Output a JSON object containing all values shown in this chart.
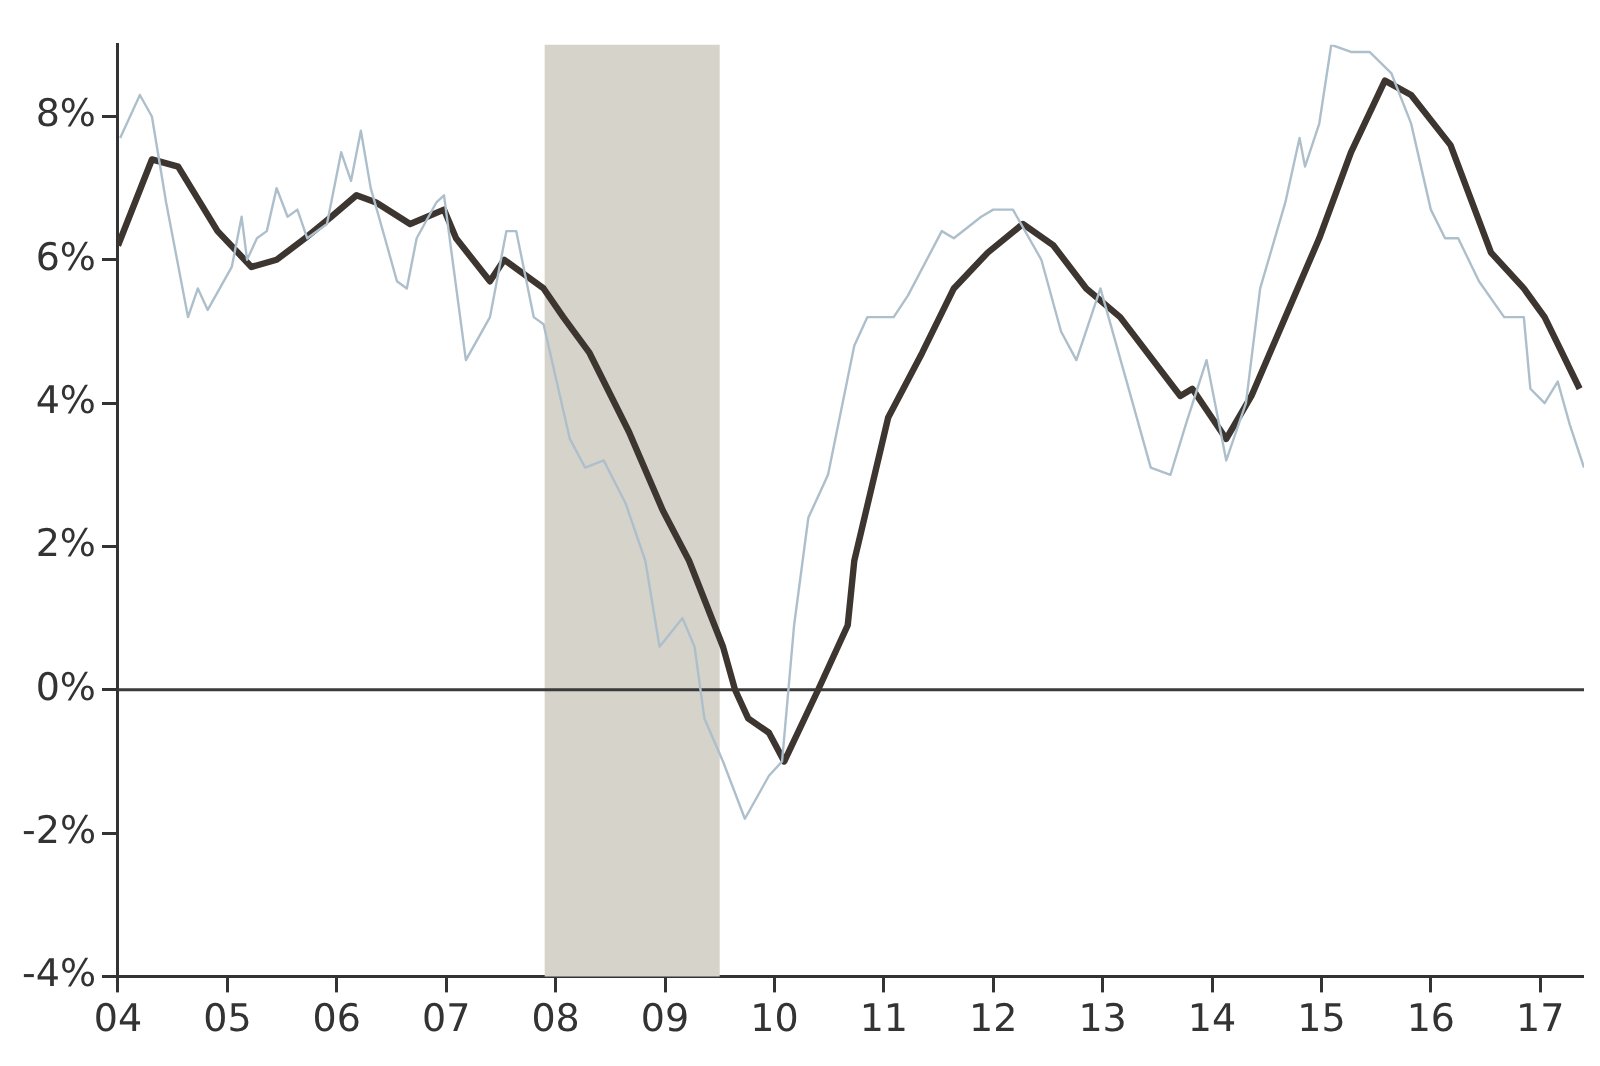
{
  "chart_data": {
    "type": "line",
    "xlim": [
      2004,
      2017.4
    ],
    "xticks": [
      {
        "value": 2004,
        "label": "04"
      },
      {
        "value": 2005,
        "label": "05"
      },
      {
        "value": 2006,
        "label": "06"
      },
      {
        "value": 2007,
        "label": "07"
      },
      {
        "value": 2008,
        "label": "08"
      },
      {
        "value": 2009,
        "label": "09"
      },
      {
        "value": 2010,
        "label": "10"
      },
      {
        "value": 2011,
        "label": "11"
      },
      {
        "value": 2012,
        "label": "12"
      },
      {
        "value": 2013,
        "label": "13"
      },
      {
        "value": 2014,
        "label": "14"
      },
      {
        "value": 2015,
        "label": "15"
      },
      {
        "value": 2016,
        "label": "16"
      },
      {
        "value": 2017,
        "label": "17"
      }
    ],
    "ylim": [
      -4,
      9
    ],
    "yticks": [
      {
        "value": -4,
        "label": "-4%"
      },
      {
        "value": -2,
        "label": "-2%"
      },
      {
        "value": 0,
        "label": "0%"
      },
      {
        "value": 2,
        "label": "2%"
      },
      {
        "value": 4,
        "label": "4%"
      },
      {
        "value": 6,
        "label": "6%"
      },
      {
        "value": 8,
        "label": "8%"
      }
    ],
    "grid": false,
    "legend": false,
    "marker": "none",
    "line_style": "solid",
    "bands": [
      {
        "axis": "x",
        "from": 2007.9,
        "to": 2009.5,
        "color": "#d6d3ca"
      }
    ],
    "ref_lines": [
      {
        "axis": "y",
        "value": 0,
        "color": "#3a3a3a"
      }
    ],
    "series": [
      {
        "color": "#aebfcc",
        "x": [
          2004.02,
          2004.2,
          2004.31,
          2004.44,
          2004.64,
          2004.73,
          2004.82,
          2005.04,
          2005.13,
          2005.18,
          2005.27,
          2005.36,
          2005.45,
          2005.55,
          2005.64,
          2005.73,
          2005.91,
          2006.04,
          2006.13,
          2006.22,
          2006.31,
          2006.44,
          2006.55,
          2006.64,
          2006.73,
          2006.91,
          2006.98,
          2007.04,
          2007.18,
          2007.4,
          2007.55,
          2007.64,
          2007.8,
          2007.89,
          2008.13,
          2008.27,
          2008.44,
          2008.64,
          2008.82,
          2008.95,
          2009.16,
          2009.27,
          2009.36,
          2009.53,
          2009.73,
          2009.95,
          2010.07,
          2010.18,
          2010.31,
          2010.49,
          2010.73,
          2010.85,
          2011.09,
          2011.22,
          2011.53,
          2011.64,
          2011.89,
          2012.0,
          2012.18,
          2012.44,
          2012.62,
          2012.76,
          2012.98,
          2013.22,
          2013.44,
          2013.62,
          2013.76,
          2013.95,
          2014.13,
          2014.31,
          2014.44,
          2014.67,
          2014.8,
          2014.85,
          2014.98,
          2015.09,
          2015.27,
          2015.44,
          2015.64,
          2015.82,
          2016.0,
          2016.13,
          2016.25,
          2016.44,
          2016.67,
          2016.85,
          2016.91,
          2017.04,
          2017.16,
          2017.27,
          2017.4
        ],
        "values": [
          7.7,
          8.3,
          8.0,
          6.8,
          5.2,
          5.6,
          5.3,
          5.9,
          6.6,
          6.0,
          6.3,
          6.4,
          7.0,
          6.6,
          6.7,
          6.3,
          6.5,
          7.5,
          7.1,
          7.8,
          7.0,
          6.3,
          5.7,
          5.6,
          6.3,
          6.8,
          6.9,
          6.2,
          4.6,
          5.2,
          6.4,
          6.4,
          5.2,
          5.1,
          3.5,
          3.1,
          3.2,
          2.6,
          1.8,
          0.6,
          1.0,
          0.6,
          -0.4,
          -1.0,
          -1.8,
          -1.2,
          -1.0,
          0.9,
          2.4,
          3.0,
          4.8,
          5.2,
          5.2,
          5.5,
          6.4,
          6.3,
          6.6,
          6.7,
          6.7,
          6.0,
          5.0,
          4.6,
          5.6,
          4.3,
          3.1,
          3.0,
          3.7,
          4.6,
          3.2,
          4.0,
          5.6,
          6.8,
          7.7,
          7.3,
          7.9,
          9.0,
          8.9,
          8.9,
          8.6,
          7.9,
          6.7,
          6.3,
          6.3,
          5.7,
          5.2,
          5.2,
          4.2,
          4.0,
          4.3,
          3.7,
          3.1
        ]
      },
      {
        "color": "#3d3530",
        "x": [
          2004.0,
          2004.31,
          2004.55,
          2004.67,
          2004.91,
          2005.22,
          2005.45,
          2005.71,
          2005.95,
          2006.18,
          2006.36,
          2006.67,
          2006.98,
          2007.09,
          2007.4,
          2007.53,
          2007.89,
          2008.07,
          2008.31,
          2008.67,
          2008.98,
          2009.22,
          2009.53,
          2009.64,
          2009.76,
          2009.95,
          2010.09,
          2010.4,
          2010.67,
          2010.73,
          2011.04,
          2011.35,
          2011.64,
          2011.95,
          2012.27,
          2012.55,
          2012.85,
          2013.16,
          2013.71,
          2013.82,
          2014.13,
          2014.36,
          2014.67,
          2014.98,
          2015.27,
          2015.58,
          2015.82,
          2016.18,
          2016.55,
          2016.85,
          2017.04,
          2017.36
        ],
        "values": [
          6.2,
          7.4,
          7.3,
          7.0,
          6.4,
          5.9,
          6.0,
          6.3,
          6.6,
          6.9,
          6.8,
          6.5,
          6.7,
          6.3,
          5.7,
          6.0,
          5.6,
          5.2,
          4.7,
          3.6,
          2.5,
          1.8,
          0.6,
          0.0,
          -0.4,
          -0.6,
          -1.0,
          0.0,
          0.9,
          1.8,
          3.8,
          4.7,
          5.6,
          6.1,
          6.5,
          6.2,
          5.6,
          5.2,
          4.1,
          4.2,
          3.5,
          4.1,
          5.2,
          6.3,
          7.5,
          8.5,
          8.3,
          7.6,
          6.1,
          5.6,
          5.2,
          4.2
        ]
      }
    ]
  }
}
